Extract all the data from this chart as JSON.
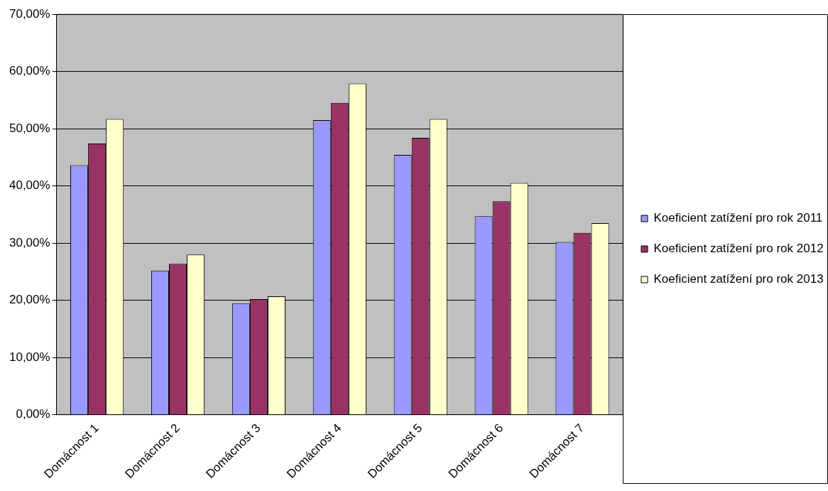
{
  "chart_data": {
    "type": "bar",
    "categories": [
      "Domácnost 1",
      "Domácnost 2",
      "Domácnost 3",
      "Domácnost 4",
      "Domácnost 5",
      "Domácnost 6",
      "Domácnost 7"
    ],
    "series": [
      {
        "name": "Koeficient zatížení pro rok 2011",
        "color": "#9999ff",
        "values": [
          43.6,
          25.2,
          19.5,
          51.5,
          45.4,
          34.7,
          30.2
        ]
      },
      {
        "name": "Koeficient zatížení pro rok 2012",
        "color": "#993366",
        "values": [
          47.4,
          26.4,
          20.2,
          54.5,
          48.4,
          37.3,
          31.8
        ]
      },
      {
        "name": "Koeficient zatížení pro rok 2013",
        "color": "#ffffcc",
        "values": [
          51.7,
          28.0,
          20.7,
          57.9,
          51.7,
          40.5,
          33.5
        ]
      }
    ],
    "ylim": [
      0,
      70
    ],
    "yticks": [
      {
        "value": 0,
        "label": "0,00%"
      },
      {
        "value": 10,
        "label": "10,00%"
      },
      {
        "value": 20,
        "label": "20,00%"
      },
      {
        "value": 30,
        "label": "30,00%"
      },
      {
        "value": 40,
        "label": "40,00%"
      },
      {
        "value": 50,
        "label": "50,00%"
      },
      {
        "value": 60,
        "label": "60,00%"
      },
      {
        "value": 70,
        "label": "70,00%"
      }
    ],
    "grid": "y",
    "legend": "right"
  }
}
